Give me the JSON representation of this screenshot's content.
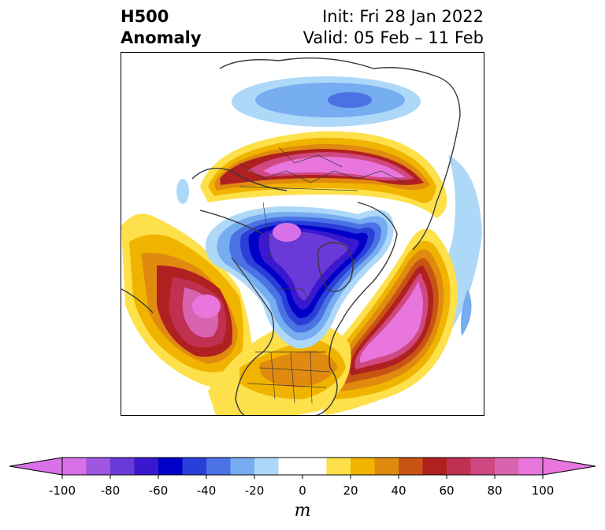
{
  "title": {
    "left_line1": "H500",
    "left_line2": "Anomaly",
    "right_line1": "Init: Fri 28 Jan 2022",
    "right_line2": "Valid: 05 Feb – 11 Feb"
  },
  "colorbar": {
    "unit": "m",
    "ticks": [
      "-100",
      "-80",
      "-60",
      "-40",
      "-20",
      "0",
      "20",
      "40",
      "60",
      "80",
      "100"
    ],
    "min": -100,
    "max": 100,
    "step": 10,
    "colors": [
      "#d870e8",
      "#a056e0",
      "#6a3ad8",
      "#3a18d0",
      "#0000c8",
      "#2a3ed8",
      "#4a72e4",
      "#76acf0",
      "#aed8f8",
      "#ffffff",
      "#ffffff",
      "#fde04a",
      "#f0b400",
      "#e08a10",
      "#c85414",
      "#b02020",
      "#c03050",
      "#d04880",
      "#d864b0",
      "#e876dc"
    ],
    "under_color": "#d870e8",
    "over_color": "#e876dc"
  },
  "map": {
    "projection": "north-polar-stereographic",
    "features": [
      "coastlines",
      "country-borders",
      "us-state-borders"
    ]
  }
}
